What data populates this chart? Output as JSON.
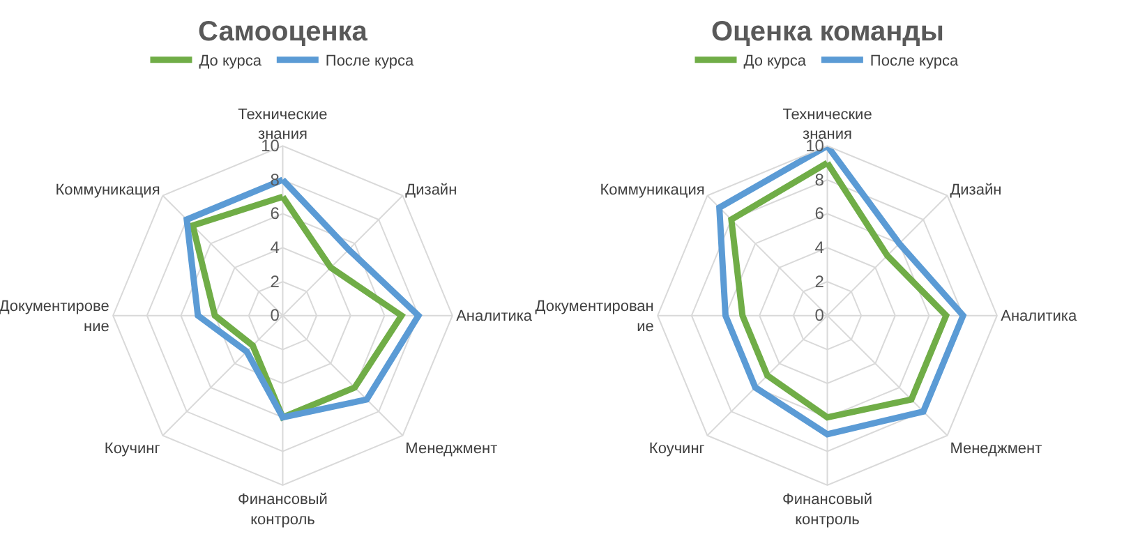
{
  "chart_data": [
    {
      "type": "radar",
      "title": "Самооценка",
      "categories": [
        "Технические\nзнания",
        "Дизайн",
        "Аналитика",
        "Менеджмент",
        "Финансовый\nконтроль",
        "Коучинг",
        "Документирове\nние",
        "Коммуникация"
      ],
      "series": [
        {
          "name": "До курса",
          "color": "#70ad47",
          "values": [
            7,
            4,
            7,
            6,
            6,
            2.5,
            4,
            7.5
          ]
        },
        {
          "name": "После курса",
          "color": "#5b9bd5",
          "values": [
            8,
            5.5,
            8,
            7,
            6,
            3,
            5,
            8
          ]
        }
      ],
      "ylim": [
        0,
        10
      ],
      "yticks": [
        0,
        2,
        4,
        6,
        8,
        10
      ],
      "legend": "top",
      "grid": true
    },
    {
      "type": "radar",
      "title": "Оценка команды",
      "categories": [
        "Технические\nзнания",
        "Дизайн",
        "Аналитика",
        "Менеджмент",
        "Финансовый\nконтроль",
        "Коучинг",
        "Документирован\nие",
        "Коммуникация"
      ],
      "series": [
        {
          "name": "До курса",
          "color": "#70ad47",
          "values": [
            9,
            5,
            7,
            7,
            6,
            5,
            5,
            8
          ]
        },
        {
          "name": "После курса",
          "color": "#5b9bd5",
          "values": [
            10,
            6,
            8,
            8,
            7,
            6,
            6,
            9
          ]
        }
      ],
      "ylim": [
        0,
        10
      ],
      "yticks": [
        0,
        2,
        4,
        6,
        8,
        10
      ],
      "legend": "top",
      "grid": true
    }
  ]
}
